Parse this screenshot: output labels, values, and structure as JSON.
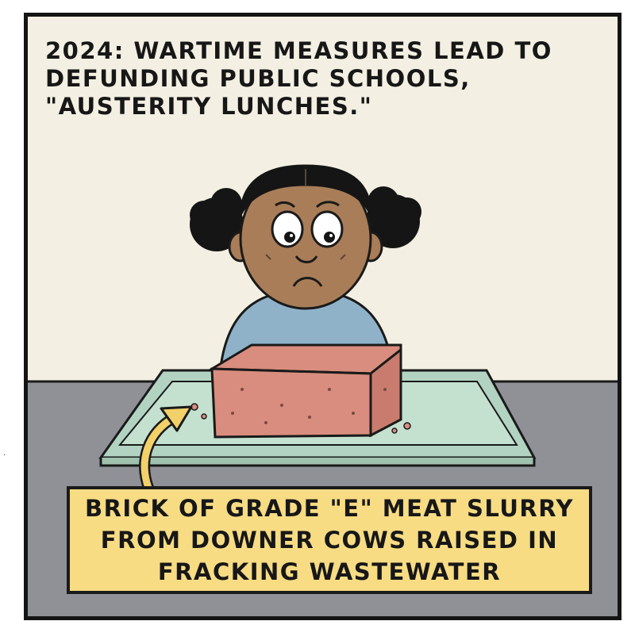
{
  "caption": {
    "text": "2024: WARTIME MEASURES LEAD TO DEFUNDING PUBLIC SCHOOLS, \"AUSTERITY LUNCHES.\""
  },
  "label": {
    "line1": "BRICK OF GRADE \"E\" MEAT SLURRY",
    "line2": "FROM DOWNER COWS RAISED IN",
    "line3": "FRACKING WASTEWATER"
  },
  "colors": {
    "wall": "#f3f0e3",
    "table": "#8f9196",
    "tray": "#c4e1cf",
    "skin": "#a97d58",
    "hair": "#151515",
    "shirt": "#8fb2c9",
    "meat": "#d98d7e",
    "label_bg": "#f7dc84",
    "arrow": "#f2d06a"
  },
  "icons": {
    "arrow": "curved-arrow-icon"
  }
}
